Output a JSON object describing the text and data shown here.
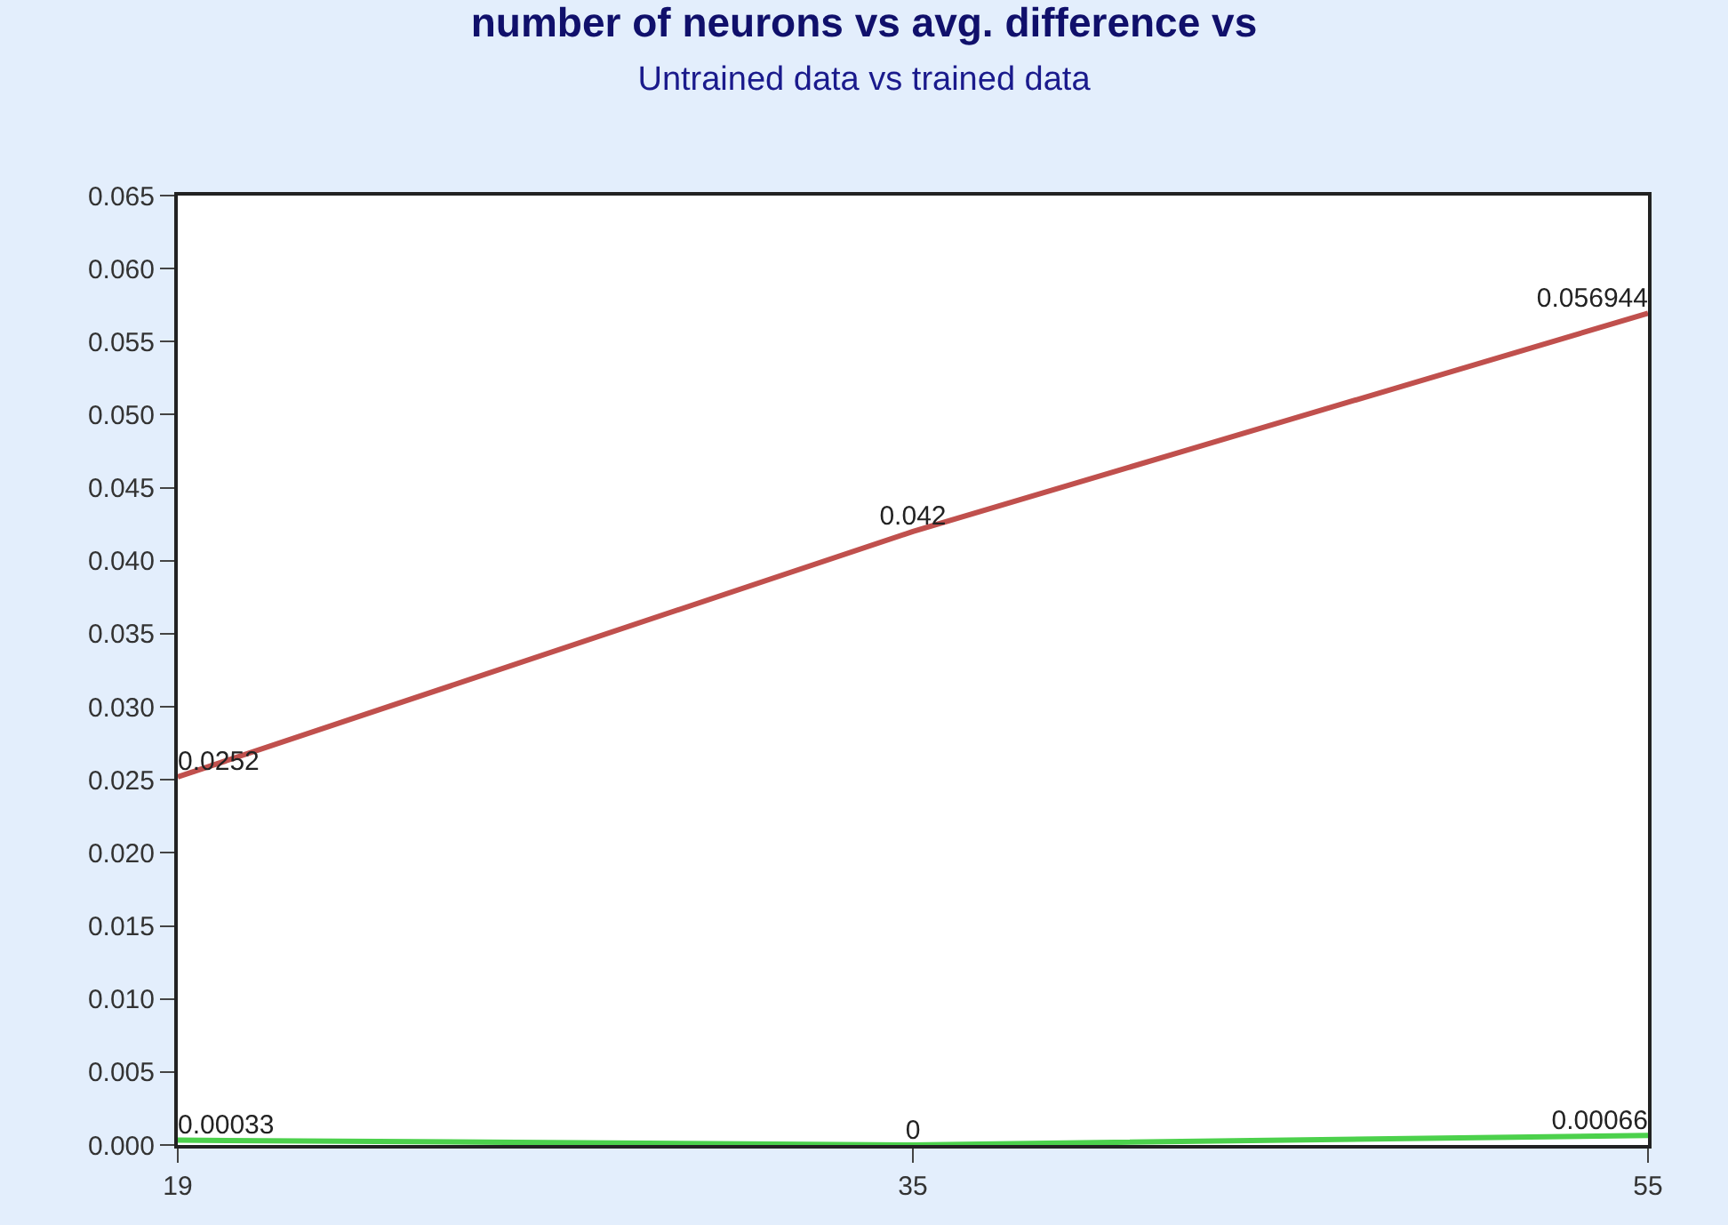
{
  "chart_data": {
    "type": "line",
    "title": "number of neurons vs avg. difference vs",
    "subtitle": "Untrained data vs trained data",
    "categories": [
      "19",
      "35",
      "55"
    ],
    "series": [
      {
        "color": "#c0504d",
        "values": [
          0.0252,
          0.042,
          0.056944
        ]
      },
      {
        "color": "#4cd14c",
        "values": [
          0.00033,
          0,
          0.00066
        ]
      }
    ],
    "ylim": [
      0,
      0.065
    ],
    "yticks": [
      "0.000",
      "0.005",
      "0.010",
      "0.015",
      "0.020",
      "0.025",
      "0.030",
      "0.035",
      "0.040",
      "0.045",
      "0.050",
      "0.055",
      "0.060",
      "0.065"
    ],
    "data_labels": true,
    "marker": "none",
    "line_style": "solid"
  }
}
